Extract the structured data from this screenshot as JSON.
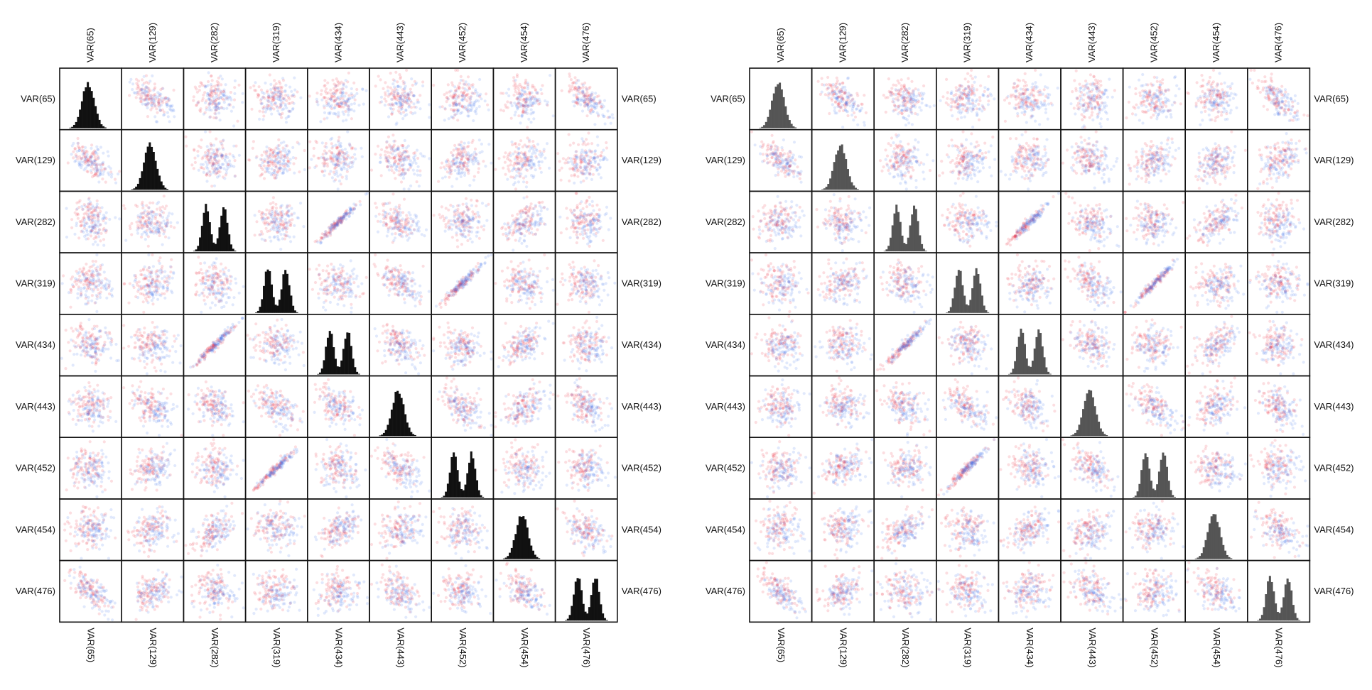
{
  "chart_data": [
    {
      "type": "scatter-matrix",
      "panel": "left",
      "variables": [
        "VAR(65)",
        "VAR(129)",
        "VAR(282)",
        "VAR(319)",
        "VAR(434)",
        "VAR(443)",
        "VAR(452)",
        "VAR(454)",
        "VAR(476)"
      ],
      "diagonal": "histogram",
      "hist_color": "#111111",
      "point_colors": [
        "#ee3344",
        "#4477ee"
      ],
      "diagonal_shapes": [
        "unimodal",
        "unimodal",
        "bimodal",
        "bimodal",
        "bimodal",
        "unimodal",
        "bimodal",
        "unimodal",
        "bimodal"
      ],
      "correlations": [
        [
          1.0,
          -0.55,
          0.0,
          0.0,
          0.0,
          0.0,
          0.0,
          0.0,
          -0.7
        ],
        [
          -0.55,
          1.0,
          0.0,
          0.25,
          0.0,
          -0.25,
          0.3,
          0.3,
          0.3
        ],
        [
          0.0,
          0.0,
          1.0,
          0.0,
          0.97,
          -0.35,
          0.0,
          0.5,
          0.0
        ],
        [
          0.0,
          0.25,
          0.0,
          1.0,
          0.0,
          -0.5,
          0.97,
          0.0,
          0.0
        ],
        [
          0.0,
          0.0,
          0.97,
          0.0,
          1.0,
          -0.35,
          0.0,
          0.5,
          0.0
        ],
        [
          0.0,
          -0.25,
          -0.35,
          -0.5,
          -0.35,
          1.0,
          -0.5,
          0.3,
          -0.35
        ],
        [
          0.0,
          0.3,
          0.0,
          0.97,
          0.0,
          -0.5,
          1.0,
          0.0,
          0.0
        ],
        [
          0.0,
          0.3,
          0.5,
          0.0,
          0.5,
          0.3,
          0.0,
          1.0,
          -0.35
        ],
        [
          -0.7,
          0.3,
          0.0,
          0.0,
          0.0,
          -0.35,
          0.0,
          -0.35,
          1.0
        ]
      ]
    },
    {
      "type": "scatter-matrix",
      "panel": "right",
      "variables": [
        "VAR(65)",
        "VAR(129)",
        "VAR(282)",
        "VAR(319)",
        "VAR(434)",
        "VAR(443)",
        "VAR(452)",
        "VAR(454)",
        "VAR(476)"
      ],
      "diagonal": "histogram",
      "hist_color": "#555555",
      "point_colors": [
        "#ee3344",
        "#4477ee"
      ],
      "diagonal_shapes": [
        "unimodal",
        "unimodal",
        "bimodal",
        "bimodal",
        "bimodal",
        "unimodal",
        "bimodal",
        "unimodal",
        "bimodal"
      ],
      "correlations": [
        [
          1.0,
          -0.55,
          0.0,
          0.0,
          0.0,
          0.0,
          0.0,
          0.0,
          -0.7
        ],
        [
          -0.55,
          1.0,
          0.0,
          0.25,
          0.0,
          -0.25,
          0.3,
          0.3,
          0.3
        ],
        [
          0.0,
          0.0,
          1.0,
          0.0,
          0.97,
          -0.35,
          0.0,
          0.5,
          0.0
        ],
        [
          0.0,
          0.25,
          0.0,
          1.0,
          0.0,
          -0.5,
          0.97,
          0.0,
          0.0
        ],
        [
          0.0,
          0.0,
          0.97,
          0.0,
          1.0,
          -0.35,
          0.0,
          0.5,
          0.0
        ],
        [
          0.0,
          -0.25,
          -0.35,
          -0.5,
          -0.35,
          1.0,
          -0.5,
          0.3,
          -0.35
        ],
        [
          0.0,
          0.3,
          0.0,
          0.97,
          0.0,
          -0.5,
          1.0,
          0.0,
          0.0
        ],
        [
          0.0,
          0.3,
          0.5,
          0.0,
          0.5,
          0.3,
          0.0,
          1.0,
          -0.35
        ],
        [
          -0.7,
          0.3,
          0.0,
          0.0,
          0.0,
          -0.35,
          0.0,
          -0.35,
          1.0
        ]
      ]
    }
  ]
}
